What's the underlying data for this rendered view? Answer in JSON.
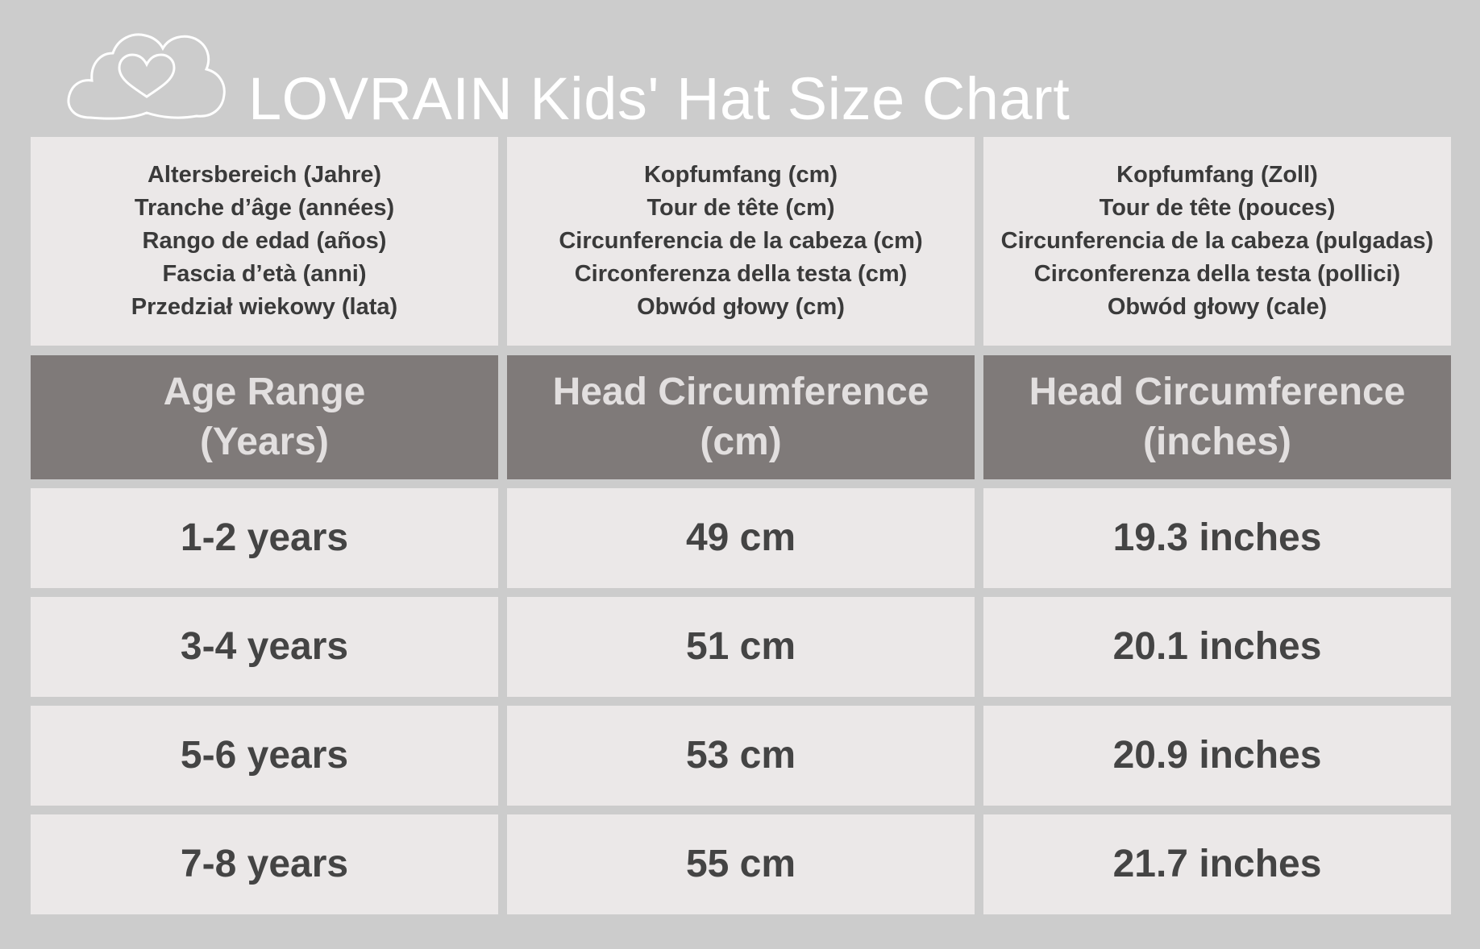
{
  "title": "LOVRAIN Kids' Hat Size Chart",
  "logo_icon": "heart-cloud-icon",
  "multilingual_headers": [
    [
      "Altersbereich (Jahre)",
      "Tranche d’âge (années)",
      "Rango de edad (años)",
      "Fascia d’età (anni)",
      "Przedział wiekowy (lata)"
    ],
    [
      "Kopfumfang (cm)",
      "Tour de tête (cm)",
      "Circunferencia de la cabeza (cm)",
      "Circonferenza della testa (cm)",
      "Obwód głowy (cm)"
    ],
    [
      "Kopfumfang (Zoll)",
      "Tour de tête (pouces)",
      "Circunferencia de la cabeza (pulgadas)",
      "Circonferenza della testa (pollici)",
      "Obwód głowy (cale)"
    ]
  ],
  "headers": [
    [
      "Age Range",
      "(Years)"
    ],
    [
      "Head Circumference",
      "(cm)"
    ],
    [
      "Head Circumference",
      "(inches)"
    ]
  ],
  "rows": [
    [
      "1-2 years",
      "49 cm",
      "19.3 inches"
    ],
    [
      "3-4 years",
      "51 cm",
      "20.1 inches"
    ],
    [
      "5-6 years",
      "53 cm",
      "20.9 inches"
    ],
    [
      "7-8 years",
      "55 cm",
      "21.7 inches"
    ]
  ],
  "colors": {
    "background": "#cccccc",
    "cell": "#ebe8e8",
    "header": "#7f7a79",
    "header_text": "#e2dfdf",
    "text": "#444444",
    "title": "#ffffff"
  }
}
